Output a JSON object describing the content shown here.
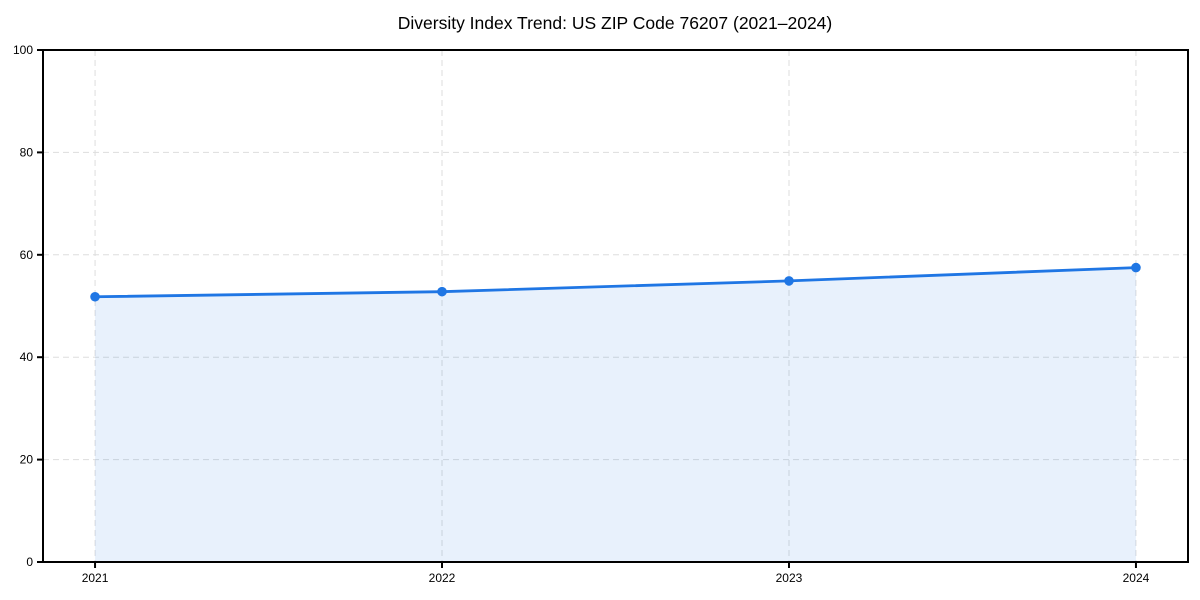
{
  "chart_data": {
    "type": "line",
    "title": "Diversity Index Trend: US ZIP Code 76207 (2021–2024)",
    "x": [
      2021,
      2022,
      2023,
      2024
    ],
    "values": [
      51.8,
      52.8,
      54.9,
      57.5
    ],
    "xlabel": "",
    "ylabel": "",
    "xticks": [
      2021,
      2022,
      2023,
      2024
    ],
    "yticks": [
      0,
      20,
      40,
      60,
      80,
      100
    ],
    "xlim": [
      2020.85,
      2024.15
    ],
    "ylim": [
      0,
      100
    ],
    "grid": "dashed-both-axes",
    "legend": "none",
    "area_fill": true,
    "colors": {
      "line": "#1f76e4",
      "marker": "#1f76e4",
      "area": "rgba(31,118,228,0.10)",
      "grid": "#dddddd",
      "axis": "#000000",
      "text": "#000000",
      "background": "#ffffff"
    }
  }
}
